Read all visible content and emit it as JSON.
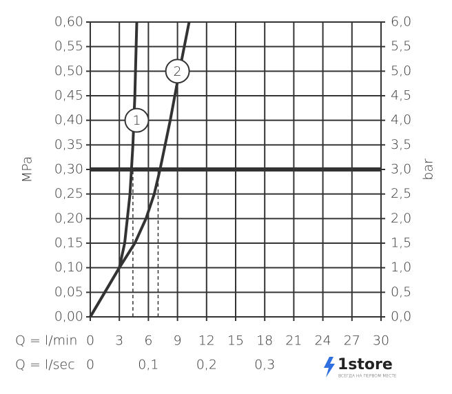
{
  "chart_data": {
    "type": "line",
    "ylabel": "MPa",
    "y2label": "bar",
    "xlabel": "Q = l/min",
    "x2label": "Q = l/sec",
    "xlim": [
      0,
      30
    ],
    "xticks": [
      0,
      3,
      6,
      9,
      12,
      15,
      18,
      21,
      24,
      27,
      30
    ],
    "x2lim": [
      0,
      0.5
    ],
    "x2ticks": [
      0,
      {
        "value": 0.1,
        "label": "0,1"
      },
      {
        "value": 0.2,
        "label": "0,2"
      },
      {
        "value": 0.3,
        "label": "0,3"
      }
    ],
    "ylim": [
      0,
      0.6
    ],
    "yticks": [
      {
        "value": 0,
        "label": "0,00"
      },
      {
        "value": 0.05,
        "label": "0,05"
      },
      {
        "value": 0.1,
        "label": "0,10"
      },
      {
        "value": 0.15,
        "label": "0,15"
      },
      {
        "value": 0.2,
        "label": "0,20"
      },
      {
        "value": 0.25,
        "label": "0,25"
      },
      {
        "value": 0.3,
        "label": "0,30"
      },
      {
        "value": 0.35,
        "label": "0,35"
      },
      {
        "value": 0.4,
        "label": "0,40"
      },
      {
        "value": 0.45,
        "label": "0,45"
      },
      {
        "value": 0.5,
        "label": "0,50"
      },
      {
        "value": 0.55,
        "label": "0,55"
      },
      {
        "value": 0.6,
        "label": "0,60"
      }
    ],
    "y2lim": [
      0,
      6
    ],
    "y2ticks": [
      {
        "value": 0,
        "label": "0,0"
      },
      {
        "value": 0.5,
        "label": "0,5"
      },
      {
        "value": 1,
        "label": "1,0"
      },
      {
        "value": 1.5,
        "label": "1,5"
      },
      {
        "value": 2,
        "label": "2,0"
      },
      {
        "value": 2.5,
        "label": "2,5"
      },
      {
        "value": 3,
        "label": "3,0"
      },
      {
        "value": 3.5,
        "label": "3,5"
      },
      {
        "value": 4,
        "label": "4,0"
      },
      {
        "value": 4.5,
        "label": "4,5"
      },
      {
        "value": 5,
        "label": "5,0"
      },
      {
        "value": 5.5,
        "label": "5,5"
      },
      {
        "value": 6,
        "label": "6,0"
      }
    ],
    "grid": true,
    "color": "#333333",
    "series": [
      {
        "name": "1",
        "color": "#333333",
        "x": [
          0,
          1.5,
          3,
          3.55,
          4.1,
          4.4,
          4.6,
          4.8
        ],
        "values": [
          0,
          0.05,
          0.1,
          0.15,
          0.25,
          0.35,
          0.45,
          0.6
        ],
        "label_x": 4.8,
        "label_y": 0.4
      },
      {
        "name": "2",
        "color": "#333333",
        "x": [
          0,
          1.5,
          3,
          4.6,
          5.75,
          6.6,
          7.2,
          8.25,
          9.2,
          10.2
        ],
        "values": [
          0,
          0.05,
          0.1,
          0.15,
          0.2,
          0.25,
          0.3,
          0.4,
          0.5,
          0.6
        ],
        "label_x": 9.0,
        "label_y": 0.5
      }
    ],
    "reference_y": 0.3,
    "dashed_x": [
      4.4,
      7.0
    ],
    "watermark": {
      "text": "1store",
      "tagline": "ВСЕГДА НА ПЕРВОМ МЕСТЕ"
    }
  }
}
